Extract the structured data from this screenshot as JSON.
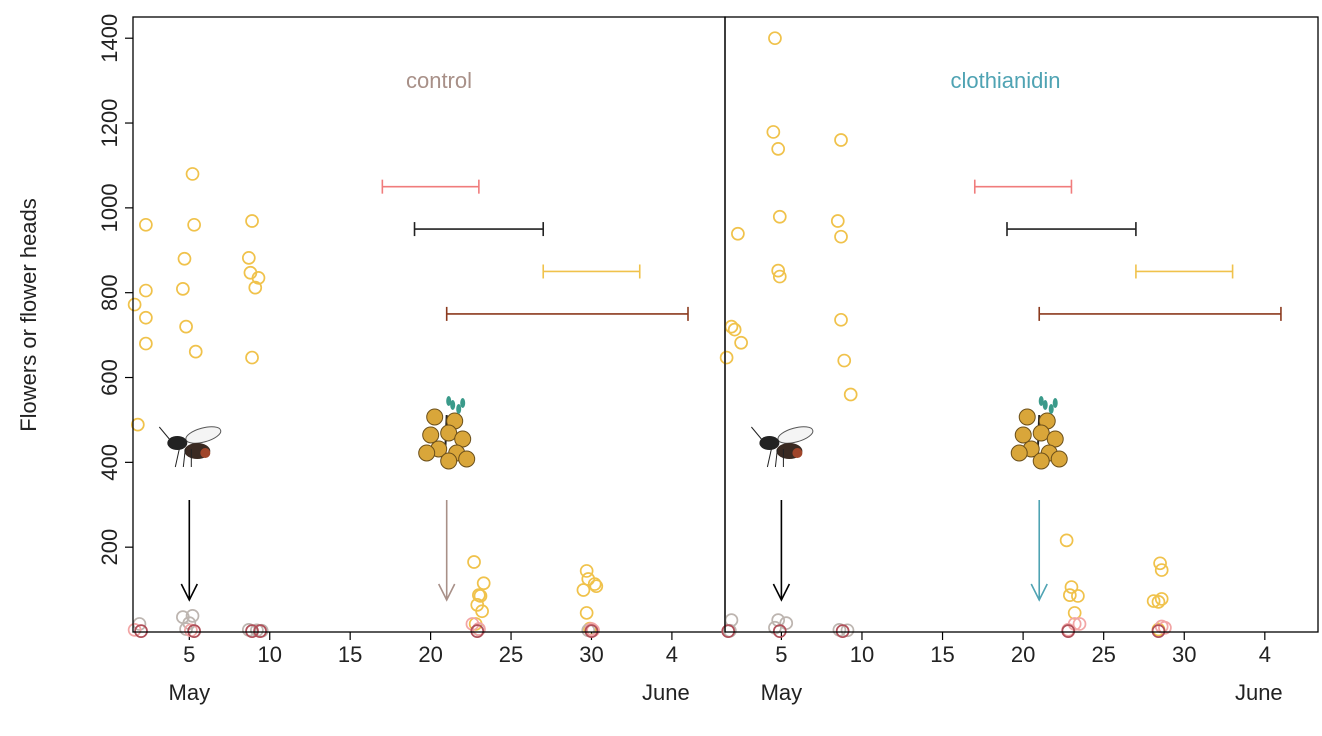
{
  "chart_data": [
    {
      "type": "scatter",
      "title": "control",
      "title_color": "#a89088",
      "ylabel": "Flowers or flower heads",
      "xlim": [
        1.5,
        38.3
      ],
      "ylim": [
        0,
        1450
      ],
      "xticks": [
        5,
        10,
        15,
        20,
        25,
        30,
        {
          "value": 35,
          "label": "4"
        }
      ],
      "yticks": [
        200,
        400,
        600,
        800,
        1000,
        1200,
        1400
      ],
      "month_labels": [
        {
          "label": "May",
          "x": 5
        },
        {
          "label": "June",
          "x": 35
        }
      ],
      "series": [
        {
          "color": "#f0c24b",
          "x": [
            1.8,
            1.6,
            2.3,
            2.3,
            2.3,
            2.3,
            5.2,
            5.3,
            4.7,
            4.6,
            4.8,
            5.4,
            8.9,
            8.7,
            8.8,
            9.3,
            9.1,
            8.9,
            22.7,
            23.0,
            23.1,
            23.3,
            22.9,
            23.2,
            22.8,
            29.7,
            29.8,
            30.2,
            30.3,
            29.5,
            29.7,
            29.9
          ],
          "values": [
            489,
            772,
            960,
            805,
            741,
            680,
            1080,
            960,
            880,
            809,
            720,
            661,
            969,
            882,
            847,
            835,
            812,
            647,
            165,
            87,
            85,
            115,
            64,
            49,
            19,
            144,
            125,
            113,
            108,
            99,
            45,
            8
          ]
        },
        {
          "color": "#bdb5b0",
          "x": [
            1.9,
            4.6,
            5.2,
            5.0,
            4.8,
            8.7,
            9.2,
            9.5,
            23.0,
            29.8
          ],
          "values": [
            19,
            35,
            38,
            21,
            7,
            5,
            4,
            3,
            6,
            4
          ]
        },
        {
          "color": "#f2a5a5",
          "x": [
            5.1,
            22.6,
            23.0,
            30.0,
            30.1,
            1.6
          ],
          "values": [
            4,
            19,
            7,
            7,
            4,
            5
          ]
        },
        {
          "color": "#b0505a",
          "x": [
            2.0,
            5.3,
            8.9,
            9.4,
            22.9,
            30.0
          ],
          "values": [
            2,
            2,
            2,
            2,
            2,
            2
          ]
        }
      ],
      "intervals": [
        {
          "from": 17,
          "to": 23,
          "y": 1050,
          "color": "#f07c7c"
        },
        {
          "from": 19,
          "to": 27,
          "y": 950,
          "color": "#222222"
        },
        {
          "from": 27,
          "to": 33,
          "y": 850,
          "color": "#f0c24b"
        },
        {
          "from": 21,
          "to": 36,
          "y": 750,
          "color": "#8b3a1e"
        }
      ],
      "arrows": [
        {
          "x": 5,
          "color": "#000000"
        },
        {
          "x": 21,
          "color": "#a89088"
        }
      ]
    },
    {
      "type": "scatter",
      "title": "clothianidin",
      "title_color": "#4fa3b3",
      "xlim": [
        1.5,
        38.3
      ],
      "ylim": [
        0,
        1450
      ],
      "xticks": [
        5,
        10,
        15,
        20,
        25,
        30,
        {
          "value": 35,
          "label": "4"
        }
      ],
      "month_labels": [
        {
          "label": "May",
          "x": 5
        },
        {
          "label": "June",
          "x": 35
        }
      ],
      "series": [
        {
          "color": "#f0c24b",
          "x": [
            4.6,
            4.5,
            4.8,
            4.9,
            4.8,
            4.9,
            2.3,
            1.9,
            2.1,
            1.6,
            2.5,
            8.7,
            8.5,
            8.7,
            8.7,
            8.9,
            9.3,
            22.7,
            23.0,
            22.9,
            23.4,
            23.2,
            28.5,
            28.6,
            28.6,
            28.1,
            28.4,
            28.4
          ],
          "values": [
            1400,
            1179,
            1139,
            979,
            852,
            838,
            939,
            720,
            713,
            647,
            682,
            1160,
            969,
            932,
            736,
            640,
            560,
            216,
            106,
            87,
            85,
            45,
            162,
            146,
            78,
            73,
            71,
            6
          ]
        },
        {
          "color": "#bdb5b0",
          "x": [
            1.9,
            4.8,
            5.3,
            4.6,
            1.8,
            8.6,
            9.1
          ],
          "values": [
            28,
            28,
            21,
            10,
            3,
            5,
            4
          ]
        },
        {
          "color": "#f2a5a5",
          "x": [
            23.2,
            23.5,
            28.6,
            28.8,
            22.8
          ],
          "values": [
            19,
            19,
            13,
            10,
            5
          ]
        },
        {
          "color": "#b0505a",
          "x": [
            1.7,
            4.9,
            8.8,
            22.8,
            28.4
          ],
          "values": [
            2,
            2,
            2,
            2,
            2
          ]
        }
      ],
      "intervals": [
        {
          "from": 17,
          "to": 23,
          "y": 1050,
          "color": "#f07c7c"
        },
        {
          "from": 19,
          "to": 27,
          "y": 950,
          "color": "#222222"
        },
        {
          "from": 27,
          "to": 33,
          "y": 850,
          "color": "#f0c24b"
        },
        {
          "from": 21,
          "to": 36,
          "y": 750,
          "color": "#8b3a1e"
        }
      ],
      "arrows": [
        {
          "x": 5,
          "color": "#000000"
        },
        {
          "x": 21,
          "color": "#4fa3b3"
        }
      ]
    }
  ]
}
